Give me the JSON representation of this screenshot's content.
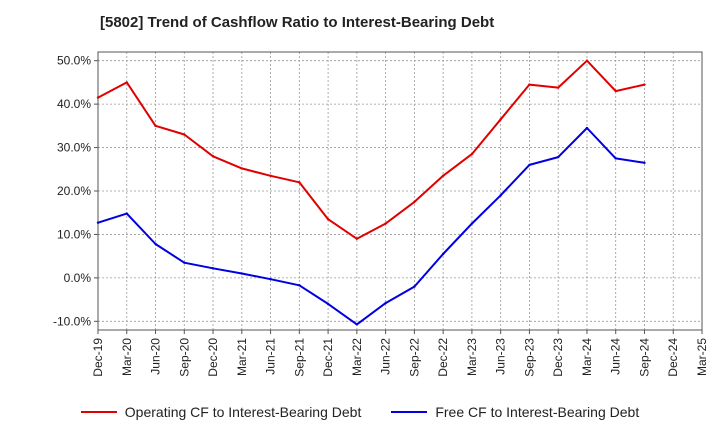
{
  "title": "[5802]  Trend of Cashflow Ratio to Interest-Bearing Debt",
  "chart_data": {
    "type": "line",
    "xlabel": "",
    "ylabel": "",
    "ylim": [
      -12,
      52
    ],
    "y_ticks": [
      -10,
      0,
      10,
      20,
      30,
      40,
      50
    ],
    "y_tick_labels": [
      "-10.0%",
      "0.0%",
      "10.0%",
      "20.0%",
      "30.0%",
      "40.0%",
      "50.0%"
    ],
    "x_tick_labels": [
      "Dec-19",
      "Mar-20",
      "Jun-20",
      "Sep-20",
      "Dec-20",
      "Mar-21",
      "Jun-21",
      "Sep-21",
      "Dec-21",
      "Mar-22",
      "Jun-22",
      "Sep-22",
      "Dec-22",
      "Mar-23",
      "Jun-23",
      "Sep-23",
      "Dec-23",
      "Mar-24",
      "Jun-24",
      "Sep-24",
      "Dec-24",
      "Mar-25"
    ],
    "grid": true,
    "legend_position": "bottom",
    "series": [
      {
        "name": "Operating CF to Interest-Bearing Debt",
        "color": "#e00000",
        "values": [
          41.5,
          45.0,
          35.0,
          33.0,
          28.0,
          25.2,
          23.5,
          22.0,
          13.5,
          9.0,
          12.5,
          17.5,
          23.5,
          28.5,
          36.5,
          44.5,
          43.8,
          50.0,
          43.0,
          44.5,
          null,
          null
        ]
      },
      {
        "name": "Free CF to Interest-Bearing Debt",
        "color": "#0000e0",
        "values": [
          12.7,
          14.8,
          7.8,
          3.5,
          2.2,
          1.0,
          -0.3,
          -1.7,
          -6.0,
          -10.7,
          -5.8,
          -2.0,
          5.5,
          12.5,
          19.0,
          26.0,
          27.8,
          34.5,
          27.5,
          26.5,
          null,
          null
        ]
      }
    ]
  }
}
